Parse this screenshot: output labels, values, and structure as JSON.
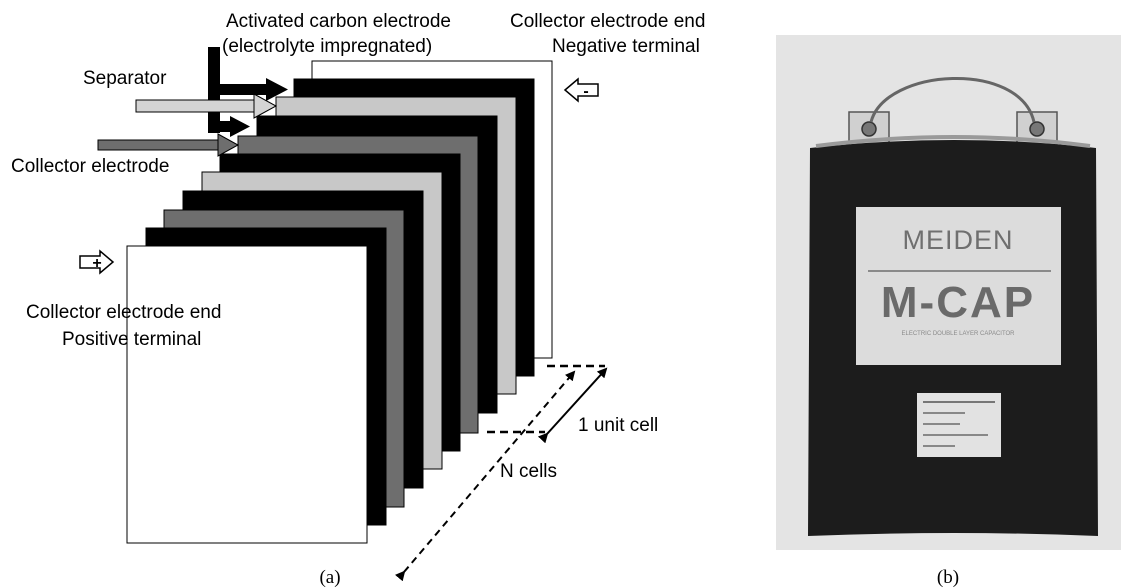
{
  "panel_a": {
    "labels": {
      "activated_carbon_line1": "Activated carbon electrode",
      "activated_carbon_line2": "(electrolyte impregnated)",
      "collector_end_neg_line1": "Collector electrode end",
      "collector_end_neg_line2": "Negative terminal",
      "separator": "Separator",
      "collector_electrode": "Collector electrode",
      "collector_end_pos_line1": "Collector electrode end",
      "collector_end_pos_line2": "Positive terminal",
      "unit_cell": "1 unit cell",
      "n_cells": "N cells"
    },
    "terminal_symbols": {
      "negative": "-",
      "positive": "+"
    },
    "caption": "(a)"
  },
  "panel_b": {
    "label_brand": "MEIDEN",
    "label_product": "M-CAP",
    "label_subtitle": "ELECTRIC DOUBLE LAYER CAPACITOR",
    "caption": "(b)"
  },
  "colors": {
    "black_sheet": "#000000",
    "separator_sheet": "#c8c8c8",
    "collector_sheet": "#6e6e6e",
    "white_sheet": "#ffffff",
    "bag": "#1a1a1a",
    "bag_label": "#dcdcdc"
  }
}
